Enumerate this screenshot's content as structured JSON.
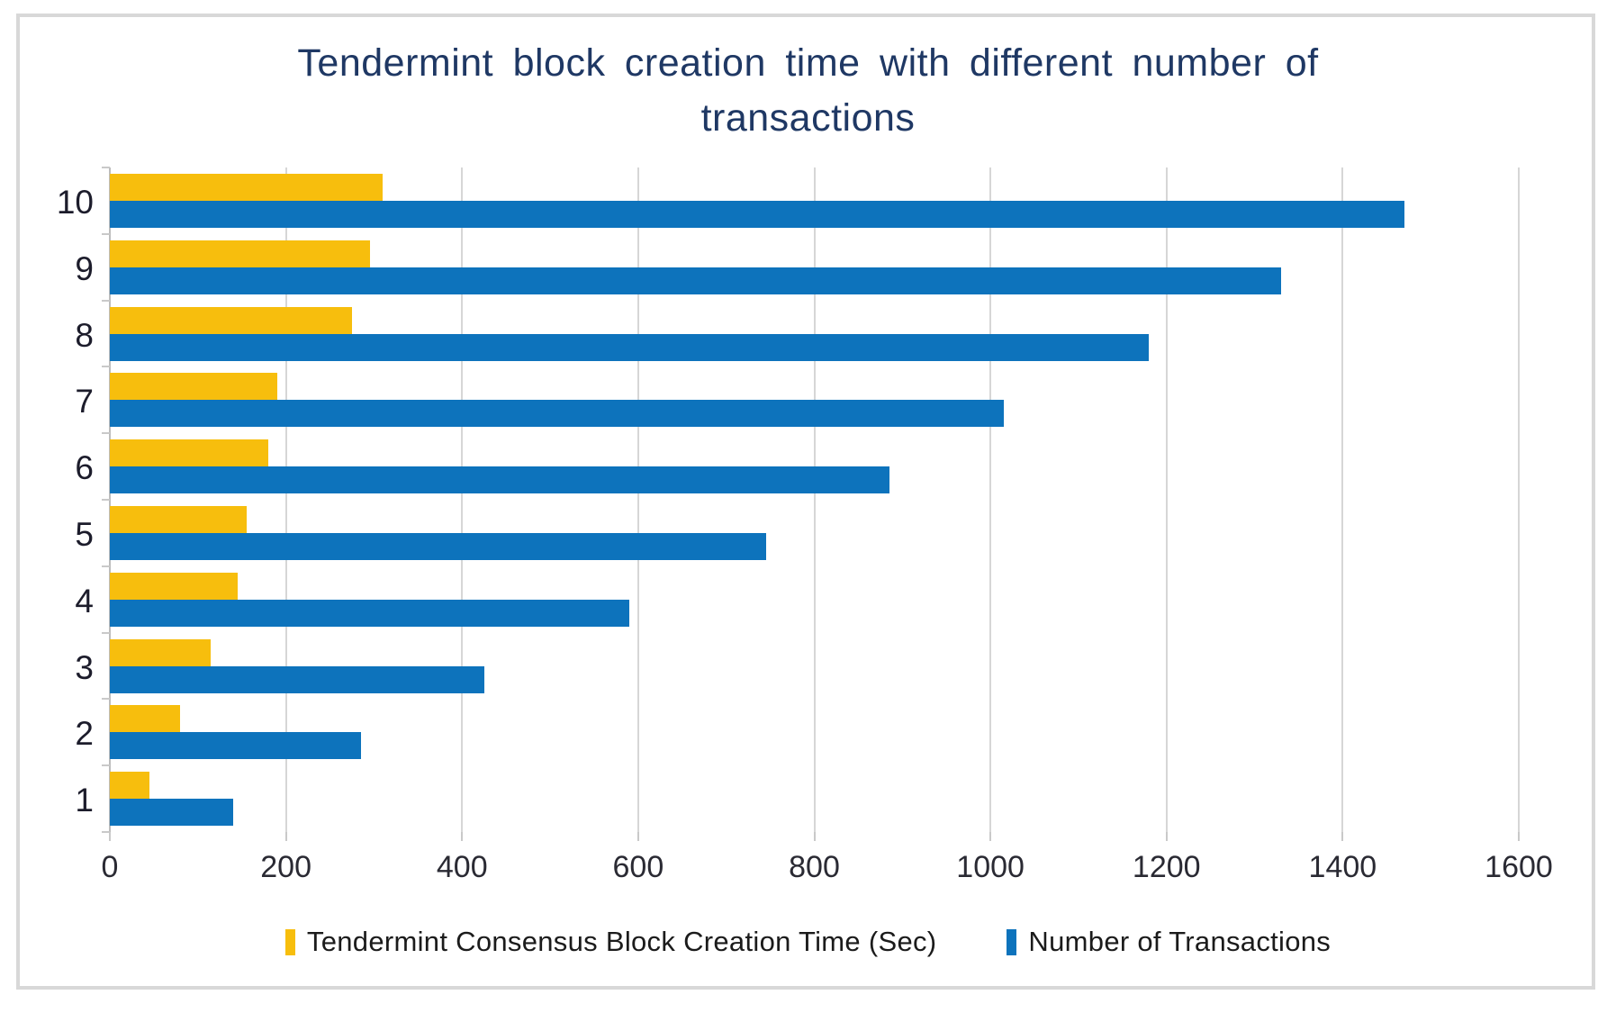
{
  "title": "Tendermint block creation time with different number of transactions",
  "colors": {
    "title_text": "#1F3864",
    "series_time": "#F7BE0D",
    "series_transactions": "#0D73BC",
    "gridline": "#D6D6D6",
    "axis_line": "#BDBDBD",
    "frame_border": "#D8D8D8",
    "tick_label": "#2A2A33"
  },
  "chart_data": {
    "type": "bar",
    "orientation": "horizontal",
    "title": "Tendermint block creation time with different number of transactions",
    "xlabel": "",
    "ylabel": "",
    "categories": [
      "1",
      "2",
      "3",
      "4",
      "5",
      "6",
      "7",
      "8",
      "9",
      "10"
    ],
    "series": [
      {
        "name": "Tendermint Consensus Block Creation Time (Sec)",
        "color": "#F7BE0D",
        "values": [
          45,
          80,
          115,
          145,
          155,
          180,
          190,
          275,
          295,
          310
        ]
      },
      {
        "name": "Number of Transactions",
        "color": "#0D73BC",
        "values": [
          140,
          285,
          425,
          590,
          745,
          885,
          1015,
          1180,
          1330,
          1470
        ]
      }
    ],
    "xlim": [
      0,
      1600
    ],
    "x_ticks": [
      0,
      200,
      400,
      600,
      800,
      1000,
      1200,
      1400,
      1600
    ],
    "grid": true,
    "legend_position": "bottom",
    "category_order_on_screen": "10 at top, 1 at bottom"
  },
  "legend": {
    "items": [
      {
        "label": "Tendermint Consensus Block Creation Time (Sec)"
      },
      {
        "label": "Number of Transactions"
      }
    ]
  }
}
